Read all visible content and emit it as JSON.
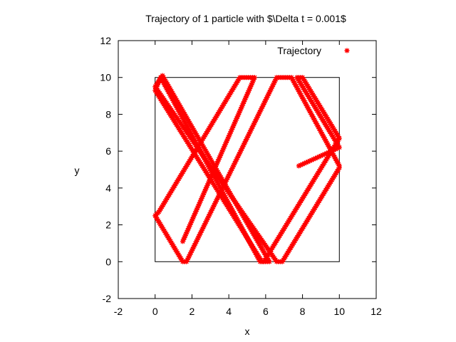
{
  "chart_data": {
    "type": "scatter",
    "title": "Trajectory of 1 particle with $\\Delta t = 0.001$",
    "xlabel": "x",
    "ylabel": "y",
    "xlim": [
      -2,
      12
    ],
    "ylim": [
      -2,
      12
    ],
    "xticks": [
      "-2",
      "0",
      "2",
      "4",
      "6",
      "8",
      "10",
      "12"
    ],
    "yticks": [
      "-2",
      "0",
      "2",
      "4",
      "6",
      "8",
      "10",
      "12"
    ],
    "grid": false,
    "legend": {
      "position": "top-right",
      "entries": [
        "Trajectory"
      ]
    },
    "box": {
      "x": [
        0,
        10
      ],
      "y": [
        0,
        10
      ]
    },
    "series": [
      {
        "name": "Trajectory",
        "color": "#ff0000",
        "marker": "star",
        "path": [
          [
            1.5,
            1.1
          ],
          [
            5.4,
            10.0
          ],
          [
            4.6,
            10.0
          ],
          [
            0.2,
            2.7
          ],
          [
            0.0,
            2.5
          ],
          [
            1.5,
            0.0
          ],
          [
            1.7,
            0.0
          ],
          [
            6.6,
            10.0
          ],
          [
            7.4,
            10.0
          ],
          [
            10.0,
            5.2
          ],
          [
            10.0,
            5.1
          ],
          [
            6.9,
            0.0
          ],
          [
            6.6,
            0.0
          ],
          [
            0.0,
            9.5
          ],
          [
            0.4,
            10.1
          ],
          [
            6.2,
            0.0
          ],
          [
            5.8,
            0.0
          ],
          [
            0.0,
            9.3
          ],
          [
            0.3,
            10.0
          ],
          [
            5.7,
            0.0
          ],
          [
            5.9,
            0.0
          ],
          [
            10.0,
            6.7
          ],
          [
            8.0,
            10.0
          ],
          [
            7.7,
            10.0
          ],
          [
            10.0,
            6.2
          ],
          [
            7.8,
            5.2
          ]
        ]
      }
    ]
  }
}
